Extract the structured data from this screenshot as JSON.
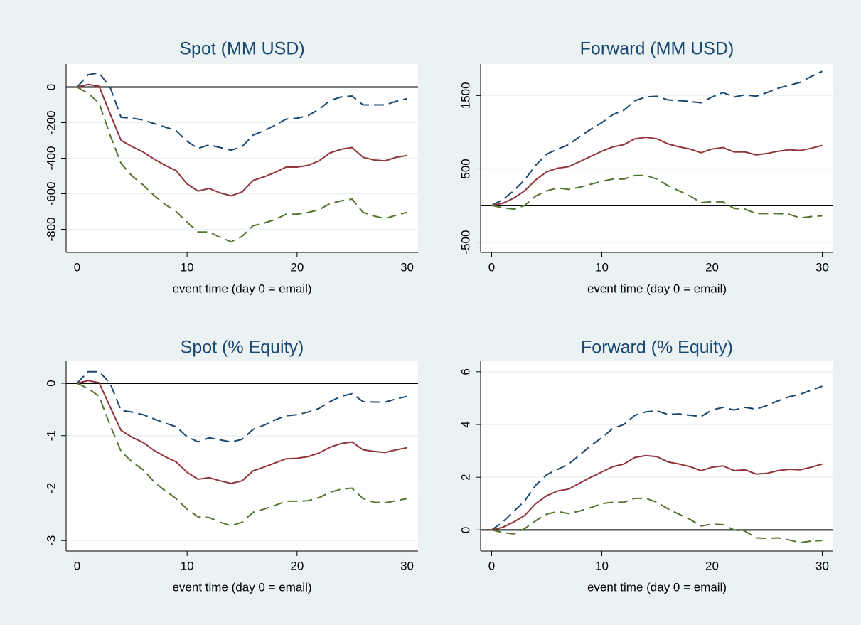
{
  "chart_data": [
    {
      "type": "line",
      "title": "Spot (MM USD)",
      "xlabel": "event time (day 0 = email)",
      "x": [
        0,
        1,
        2,
        3,
        4,
        5,
        6,
        7,
        8,
        9,
        10,
        11,
        12,
        13,
        14,
        15,
        16,
        17,
        18,
        19,
        20,
        21,
        22,
        23,
        24,
        25,
        26,
        27,
        28,
        29,
        30
      ],
      "xlim": [
        -1,
        31
      ],
      "xticks": [
        0,
        10,
        20,
        30
      ],
      "ylim": [
        -930,
        130
      ],
      "yticks": [
        -800,
        -600,
        -400,
        -200,
        0
      ],
      "grid": true,
      "refline": 0,
      "series": [
        {
          "color": "#1a476f",
          "dash": true,
          "values": [
            0,
            70,
            80,
            0,
            -170,
            -175,
            -185,
            -205,
            -225,
            -245,
            -305,
            -345,
            -325,
            -340,
            -355,
            -335,
            -270,
            -245,
            -215,
            -180,
            -175,
            -160,
            -125,
            -75,
            -55,
            -50,
            -100,
            -100,
            -100,
            -80,
            -65
          ]
        },
        {
          "color": "#90353b",
          "dash": false,
          "values": [
            0,
            15,
            5,
            -150,
            -300,
            -335,
            -365,
            -405,
            -440,
            -470,
            -545,
            -585,
            -570,
            -595,
            -612,
            -590,
            -525,
            -505,
            -480,
            -450,
            -450,
            -440,
            -415,
            -370,
            -350,
            -340,
            -395,
            -410,
            -415,
            -395,
            -385
          ]
        },
        {
          "color": "#55752f",
          "dash": true,
          "values": [
            0,
            -35,
            -90,
            -270,
            -430,
            -500,
            -550,
            -610,
            -660,
            -700,
            -760,
            -815,
            -815,
            -845,
            -870,
            -840,
            -780,
            -765,
            -745,
            -715,
            -715,
            -705,
            -690,
            -655,
            -640,
            -630,
            -705,
            -725,
            -740,
            -720,
            -705
          ]
        }
      ]
    },
    {
      "type": "line",
      "title": "Forward (MM USD)",
      "xlabel": "event time (day 0 = email)",
      "x": [
        0,
        1,
        2,
        3,
        4,
        5,
        6,
        7,
        8,
        9,
        10,
        11,
        12,
        13,
        14,
        15,
        16,
        17,
        18,
        19,
        20,
        21,
        22,
        23,
        24,
        25,
        26,
        27,
        28,
        29,
        30
      ],
      "xlim": [
        -1,
        31
      ],
      "xticks": [
        0,
        10,
        20,
        30
      ],
      "ylim": [
        -640,
        1930
      ],
      "yticks": [
        -500,
        500,
        1500
      ],
      "grid": true,
      "refline": 0,
      "series": [
        {
          "color": "#1a476f",
          "dash": true,
          "values": [
            0,
            80,
            200,
            350,
            550,
            700,
            770,
            830,
            940,
            1040,
            1130,
            1240,
            1300,
            1430,
            1480,
            1490,
            1440,
            1430,
            1420,
            1400,
            1480,
            1540,
            1480,
            1510,
            1490,
            1540,
            1600,
            1640,
            1680,
            1760,
            1830
          ]
        },
        {
          "color": "#90353b",
          "dash": false,
          "values": [
            0,
            30,
            100,
            200,
            350,
            460,
            510,
            530,
            600,
            670,
            740,
            800,
            830,
            910,
            930,
            910,
            840,
            800,
            770,
            720,
            770,
            790,
            730,
            730,
            690,
            710,
            740,
            760,
            750,
            780,
            820
          ]
        },
        {
          "color": "#55752f",
          "dash": true,
          "values": [
            0,
            -30,
            -50,
            0,
            130,
            200,
            240,
            220,
            250,
            290,
            330,
            360,
            360,
            410,
            410,
            360,
            270,
            200,
            130,
            40,
            50,
            50,
            -40,
            -50,
            -110,
            -110,
            -110,
            -120,
            -170,
            -150,
            -140
          ]
        }
      ]
    },
    {
      "type": "line",
      "title": "Spot (% Equity)",
      "xlabel": "event time (day 0 = email)",
      "x": [
        0,
        1,
        2,
        3,
        4,
        5,
        6,
        7,
        8,
        9,
        10,
        11,
        12,
        13,
        14,
        15,
        16,
        17,
        18,
        19,
        20,
        21,
        22,
        23,
        24,
        25,
        26,
        27,
        28,
        29,
        30
      ],
      "xlim": [
        -1,
        31
      ],
      "xticks": [
        0,
        10,
        20,
        30
      ],
      "ylim": [
        -3.2,
        0.42
      ],
      "yticks": [
        -3,
        -2,
        -1,
        0
      ],
      "grid": true,
      "refline": 0,
      "series": [
        {
          "color": "#1a476f",
          "dash": true,
          "values": [
            0,
            0.22,
            0.22,
            0,
            -0.52,
            -0.55,
            -0.6,
            -0.68,
            -0.76,
            -0.83,
            -1.02,
            -1.12,
            -1.04,
            -1.08,
            -1.12,
            -1.07,
            -0.88,
            -0.8,
            -0.7,
            -0.62,
            -0.6,
            -0.55,
            -0.48,
            -0.35,
            -0.25,
            -0.2,
            -0.35,
            -0.36,
            -0.36,
            -0.3,
            -0.25
          ]
        },
        {
          "color": "#90353b",
          "dash": false,
          "values": [
            0,
            0.05,
            0.01,
            -0.45,
            -0.9,
            -1.03,
            -1.13,
            -1.28,
            -1.4,
            -1.5,
            -1.7,
            -1.83,
            -1.8,
            -1.86,
            -1.91,
            -1.86,
            -1.67,
            -1.6,
            -1.52,
            -1.44,
            -1.43,
            -1.4,
            -1.33,
            -1.22,
            -1.15,
            -1.12,
            -1.27,
            -1.3,
            -1.32,
            -1.27,
            -1.23
          ]
        },
        {
          "color": "#55752f",
          "dash": true,
          "values": [
            0,
            -0.1,
            -0.25,
            -0.8,
            -1.3,
            -1.5,
            -1.65,
            -1.88,
            -2.05,
            -2.2,
            -2.4,
            -2.55,
            -2.56,
            -2.65,
            -2.72,
            -2.65,
            -2.46,
            -2.4,
            -2.33,
            -2.25,
            -2.25,
            -2.24,
            -2.18,
            -2.08,
            -2.02,
            -2.0,
            -2.2,
            -2.27,
            -2.28,
            -2.24,
            -2.2
          ]
        }
      ]
    },
    {
      "type": "line",
      "title": "Forward (% Equity)",
      "xlabel": "event time (day 0 = email)",
      "x": [
        0,
        1,
        2,
        3,
        4,
        5,
        6,
        7,
        8,
        9,
        10,
        11,
        12,
        13,
        14,
        15,
        16,
        17,
        18,
        19,
        20,
        21,
        22,
        23,
        24,
        25,
        26,
        27,
        28,
        29,
        30
      ],
      "xlim": [
        -1,
        31
      ],
      "xticks": [
        0,
        10,
        20,
        30
      ],
      "ylim": [
        -0.8,
        6.4
      ],
      "yticks": [
        0,
        2,
        4,
        6
      ],
      "grid": true,
      "refline": 0,
      "series": [
        {
          "color": "#1a476f",
          "dash": true,
          "values": [
            0,
            0.3,
            0.7,
            1.1,
            1.7,
            2.1,
            2.3,
            2.5,
            2.85,
            3.2,
            3.5,
            3.85,
            4.0,
            4.35,
            4.48,
            4.52,
            4.38,
            4.4,
            4.35,
            4.3,
            4.55,
            4.65,
            4.55,
            4.65,
            4.58,
            4.72,
            4.9,
            5.05,
            5.15,
            5.3,
            5.45
          ]
        },
        {
          "color": "#90353b",
          "dash": false,
          "values": [
            0,
            0.1,
            0.3,
            0.55,
            1.0,
            1.3,
            1.48,
            1.55,
            1.78,
            2.0,
            2.2,
            2.4,
            2.5,
            2.75,
            2.82,
            2.78,
            2.58,
            2.5,
            2.4,
            2.25,
            2.38,
            2.43,
            2.25,
            2.28,
            2.12,
            2.15,
            2.25,
            2.3,
            2.28,
            2.38,
            2.5
          ]
        },
        {
          "color": "#55752f",
          "dash": true,
          "values": [
            0,
            -0.1,
            -0.15,
            0.05,
            0.35,
            0.6,
            0.7,
            0.62,
            0.72,
            0.85,
            1.0,
            1.05,
            1.05,
            1.2,
            1.2,
            1.05,
            0.8,
            0.6,
            0.4,
            0.15,
            0.22,
            0.2,
            0.0,
            -0.05,
            -0.3,
            -0.32,
            -0.3,
            -0.38,
            -0.48,
            -0.42,
            -0.4
          ]
        }
      ]
    }
  ]
}
